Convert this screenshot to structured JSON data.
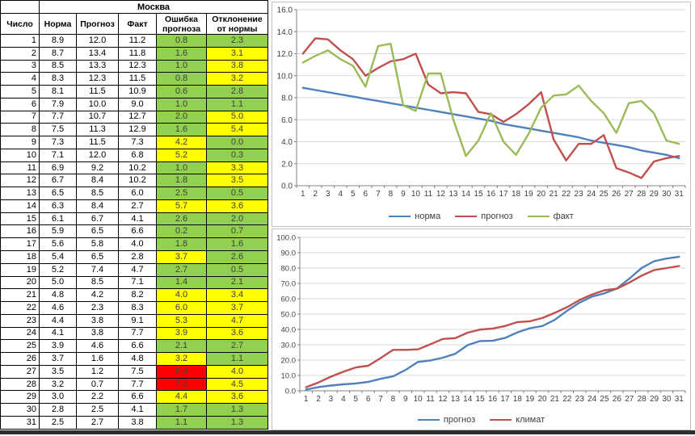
{
  "table": {
    "city": "Москва",
    "columns": [
      "Число",
      "Норма",
      "Прогноз",
      "Факт",
      "Ошибка прогноза",
      "Отклонение от нормы"
    ],
    "rows": [
      [
        1,
        "8.9",
        "12.0",
        "11.2",
        "0.8",
        "g",
        "2.3",
        "g"
      ],
      [
        2,
        "8.7",
        "13.4",
        "11.8",
        "1.6",
        "g",
        "3.1",
        "y"
      ],
      [
        3,
        "8.5",
        "13.3",
        "12.3",
        "1.0",
        "g",
        "3.8",
        "y"
      ],
      [
        4,
        "8.3",
        "12.3",
        "11.5",
        "0.8",
        "g",
        "3.2",
        "y"
      ],
      [
        5,
        "8.1",
        "11.5",
        "10.9",
        "0.6",
        "g",
        "2.8",
        "g"
      ],
      [
        6,
        "7.9",
        "10.0",
        "9.0",
        "1.0",
        "g",
        "1.1",
        "g"
      ],
      [
        7,
        "7.7",
        "10.7",
        "12.7",
        "2.0",
        "g",
        "5.0",
        "y"
      ],
      [
        8,
        "7.5",
        "11.3",
        "12.9",
        "1.6",
        "g",
        "5.4",
        "y"
      ],
      [
        9,
        "7.3",
        "11.5",
        "7.3",
        "4.2",
        "y",
        "0.0",
        "g"
      ],
      [
        10,
        "7.1",
        "12.0",
        "6.8",
        "5.2",
        "y",
        "0.3",
        "g"
      ],
      [
        11,
        "6.9",
        "9.2",
        "10.2",
        "1.0",
        "g",
        "3.3",
        "y"
      ],
      [
        12,
        "6.7",
        "8.4",
        "10.2",
        "1.8",
        "g",
        "3.5",
        "y"
      ],
      [
        13,
        "6.5",
        "8.5",
        "6.0",
        "2.5",
        "g",
        "0.5",
        "g"
      ],
      [
        14,
        "6.3",
        "8.4",
        "2.7",
        "5.7",
        "y",
        "3.6",
        "y"
      ],
      [
        15,
        "6.1",
        "6.7",
        "4.1",
        "2.6",
        "g",
        "2.0",
        "g"
      ],
      [
        16,
        "5.9",
        "6.5",
        "6.6",
        "0.2",
        "g",
        "0.7",
        "g"
      ],
      [
        17,
        "5.6",
        "5.8",
        "4.0",
        "1.8",
        "g",
        "1.6",
        "g"
      ],
      [
        18,
        "5.4",
        "6.5",
        "2.8",
        "3.7",
        "y",
        "2.6",
        "g"
      ],
      [
        19,
        "5.2",
        "7.4",
        "4.7",
        "2.7",
        "g",
        "0.5",
        "g"
      ],
      [
        20,
        "5.0",
        "8.5",
        "7.1",
        "1.4",
        "g",
        "2.1",
        "g"
      ],
      [
        21,
        "4.8",
        "4.2",
        "8.2",
        "4.0",
        "y",
        "3.4",
        "y"
      ],
      [
        22,
        "4.6",
        "2.3",
        "8.3",
        "6.0",
        "y",
        "3.7",
        "y"
      ],
      [
        23,
        "4.4",
        "3.8",
        "9.1",
        "5.3",
        "y",
        "4.7",
        "y"
      ],
      [
        24,
        "4.1",
        "3.8",
        "7.7",
        "3.9",
        "y",
        "3.6",
        "y"
      ],
      [
        25,
        "3.9",
        "4.6",
        "6.6",
        "2.1",
        "g",
        "2.7",
        "g"
      ],
      [
        26,
        "3.7",
        "1.6",
        "4.8",
        "3.2",
        "y",
        "1.1",
        "g"
      ],
      [
        27,
        "3.5",
        "1.2",
        "7.5",
        "6.4",
        "r",
        "4.0",
        "y"
      ],
      [
        28,
        "3.2",
        "0.7",
        "7.7",
        "7.0",
        "r",
        "4.5",
        "y"
      ],
      [
        29,
        "3.0",
        "2.2",
        "6.6",
        "4.4",
        "y",
        "3.6",
        "y"
      ],
      [
        30,
        "2.8",
        "2.5",
        "4.1",
        "1.7",
        "g",
        "1.3",
        "g"
      ],
      [
        31,
        "2.5",
        "2.7",
        "3.8",
        "1.1",
        "g",
        "1.3",
        "g"
      ]
    ]
  },
  "colors": {
    "g": "#92D050",
    "y": "#FFFF00",
    "r": "#FF0000",
    "corner_border": "#1E7145",
    "grid": "#d9d9d9",
    "axis": "#808080",
    "tick_text": "#3f3f3f"
  },
  "chart_data": [
    {
      "type": "line",
      "title": "",
      "x": [
        1,
        2,
        3,
        4,
        5,
        6,
        7,
        8,
        9,
        10,
        11,
        12,
        13,
        14,
        15,
        16,
        17,
        18,
        19,
        20,
        21,
        22,
        23,
        24,
        25,
        26,
        27,
        28,
        29,
        30,
        31
      ],
      "series": [
        {
          "name": "норма",
          "color": "#4F81BD",
          "values": [
            8.9,
            8.7,
            8.5,
            8.3,
            8.1,
            7.9,
            7.7,
            7.5,
            7.3,
            7.1,
            6.9,
            6.7,
            6.5,
            6.3,
            6.1,
            5.9,
            5.6,
            5.4,
            5.2,
            5.0,
            4.8,
            4.6,
            4.4,
            4.1,
            3.9,
            3.7,
            3.5,
            3.2,
            3.0,
            2.8,
            2.5
          ]
        },
        {
          "name": "прогноз",
          "color": "#C0504D",
          "values": [
            12.0,
            13.4,
            13.3,
            12.3,
            11.5,
            10.0,
            10.7,
            11.3,
            11.5,
            12.0,
            9.2,
            8.4,
            8.5,
            8.4,
            6.7,
            6.5,
            5.8,
            6.5,
            7.4,
            8.5,
            4.2,
            2.3,
            3.8,
            3.8,
            4.6,
            1.6,
            1.2,
            0.7,
            2.2,
            2.5,
            2.7
          ]
        },
        {
          "name": "факт",
          "color": "#9BBB59",
          "values": [
            11.2,
            11.8,
            12.3,
            11.5,
            10.9,
            9.0,
            12.7,
            12.9,
            7.3,
            6.8,
            10.2,
            10.2,
            6.0,
            2.7,
            4.1,
            6.6,
            4.0,
            2.8,
            4.7,
            7.1,
            8.2,
            8.3,
            9.1,
            7.7,
            6.6,
            4.8,
            7.5,
            7.7,
            6.6,
            4.1,
            3.8
          ]
        }
      ],
      "ylim": [
        0,
        16
      ],
      "ytick_step": 2,
      "grid": true,
      "legend_position": "bottom"
    },
    {
      "type": "line",
      "title": "",
      "x": [
        1,
        2,
        3,
        4,
        5,
        6,
        7,
        8,
        9,
        10,
        11,
        12,
        13,
        14,
        15,
        16,
        17,
        18,
        19,
        20,
        21,
        22,
        23,
        24,
        25,
        26,
        27,
        28,
        29,
        30,
        31
      ],
      "series": [
        {
          "name": "прогноз",
          "color": "#4F81BD",
          "values": [
            0.8,
            2.4,
            3.4,
            4.2,
            4.8,
            5.8,
            7.8,
            9.4,
            13.6,
            18.8,
            19.8,
            21.6,
            24.1,
            29.8,
            32.4,
            32.6,
            34.4,
            38.1,
            40.8,
            42.2,
            46.2,
            52.2,
            57.5,
            61.4,
            63.5,
            66.7,
            73.1,
            80.1,
            84.5,
            86.2,
            87.3
          ]
        },
        {
          "name": "климат",
          "color": "#C0504D",
          "values": [
            2.3,
            5.4,
            9.2,
            12.4,
            15.2,
            16.3,
            21.3,
            26.7,
            26.7,
            27.0,
            30.3,
            33.8,
            34.3,
            37.9,
            39.9,
            40.6,
            42.2,
            44.8,
            45.3,
            47.4,
            50.8,
            54.5,
            59.2,
            62.8,
            65.5,
            66.6,
            70.6,
            75.1,
            78.7,
            80.0,
            81.3
          ]
        }
      ],
      "ylim": [
        0,
        100
      ],
      "ytick_step": 10,
      "grid": true,
      "legend_position": "bottom"
    }
  ]
}
